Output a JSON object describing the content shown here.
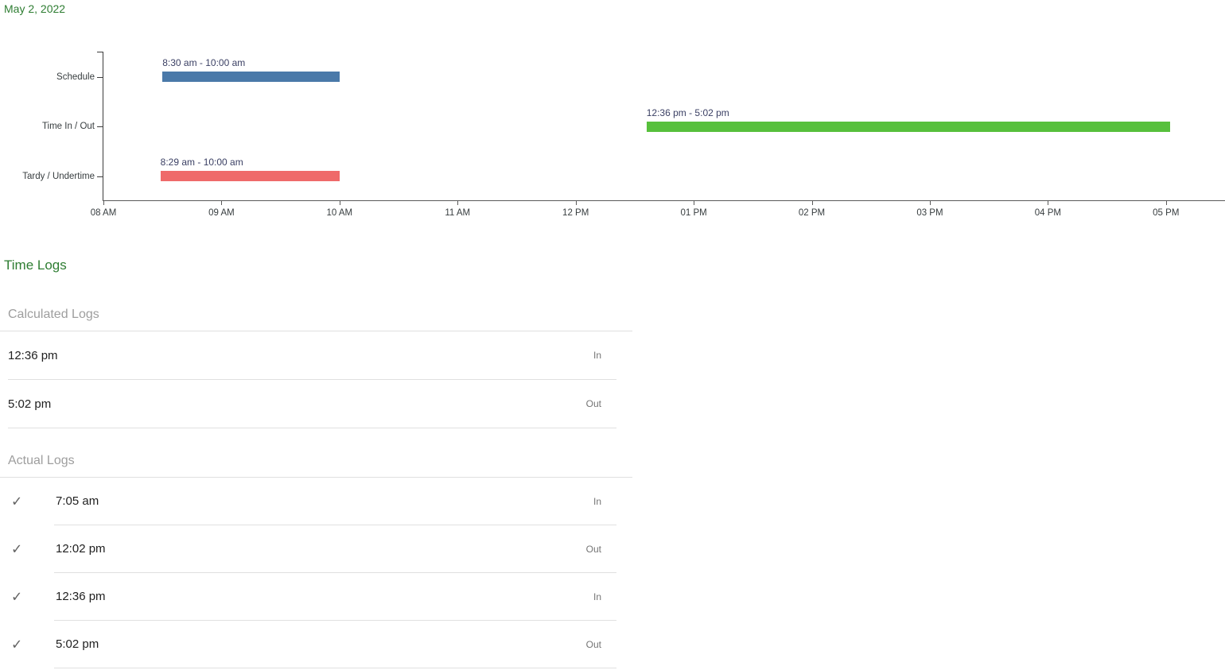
{
  "page": {
    "date_title": "May 2, 2022"
  },
  "colors": {
    "accent_green": "#2e7d32",
    "schedule_bar": "#4a79a9",
    "time_in_out_bar": "#57c03c",
    "tardy_bar": "#ef6a6a",
    "annotation_text": "#3a3f63"
  },
  "icons": {
    "check": "✓"
  },
  "chart_data": {
    "type": "rangeBar",
    "title": "",
    "grid": false,
    "legend": "none",
    "categories": [
      "Schedule",
      "Time In / Out",
      "Tardy / Undertime"
    ],
    "series": [
      {
        "name": "Schedule",
        "label": "8:30 am - 10:00 am",
        "start": "8:30 am",
        "end": "10:00 am",
        "start_h": 8.5,
        "end_h": 10.0,
        "color_key": "schedule_bar"
      },
      {
        "name": "Time In / Out",
        "label": "12:36 pm - 5:02 pm",
        "start": "12:36 pm",
        "end": "5:02 pm",
        "start_h": 12.6,
        "end_h": 17.033,
        "color_key": "time_in_out_bar"
      },
      {
        "name": "Tardy / Undertime",
        "label": "8:29 am - 10:00 am",
        "start": "8:29 am",
        "end": "10:00 am",
        "start_h": 8.483,
        "end_h": 10.0,
        "color_key": "tardy_bar"
      }
    ],
    "x_axis": {
      "min": 8,
      "max": 17.5,
      "ticks": [
        {
          "h": 8,
          "label": "08 AM"
        },
        {
          "h": 9,
          "label": "09 AM"
        },
        {
          "h": 10,
          "label": "10 AM"
        },
        {
          "h": 11,
          "label": "11 AM"
        },
        {
          "h": 12,
          "label": "12 PM"
        },
        {
          "h": 13,
          "label": "01 PM"
        },
        {
          "h": 14,
          "label": "02 PM"
        },
        {
          "h": 15,
          "label": "03 PM"
        },
        {
          "h": 16,
          "label": "04 PM"
        },
        {
          "h": 17,
          "label": "05 PM"
        }
      ]
    }
  },
  "time_logs": {
    "title": "Time Logs",
    "calculated": {
      "title": "Calculated Logs",
      "rows": [
        {
          "time": "12:36 pm",
          "direction": "In"
        },
        {
          "time": "5:02 pm",
          "direction": "Out"
        }
      ]
    },
    "actual": {
      "title": "Actual Logs",
      "rows": [
        {
          "time": "7:05 am",
          "direction": "In"
        },
        {
          "time": "12:02 pm",
          "direction": "Out"
        },
        {
          "time": "12:36 pm",
          "direction": "In"
        },
        {
          "time": "5:02 pm",
          "direction": "Out"
        }
      ]
    }
  }
}
